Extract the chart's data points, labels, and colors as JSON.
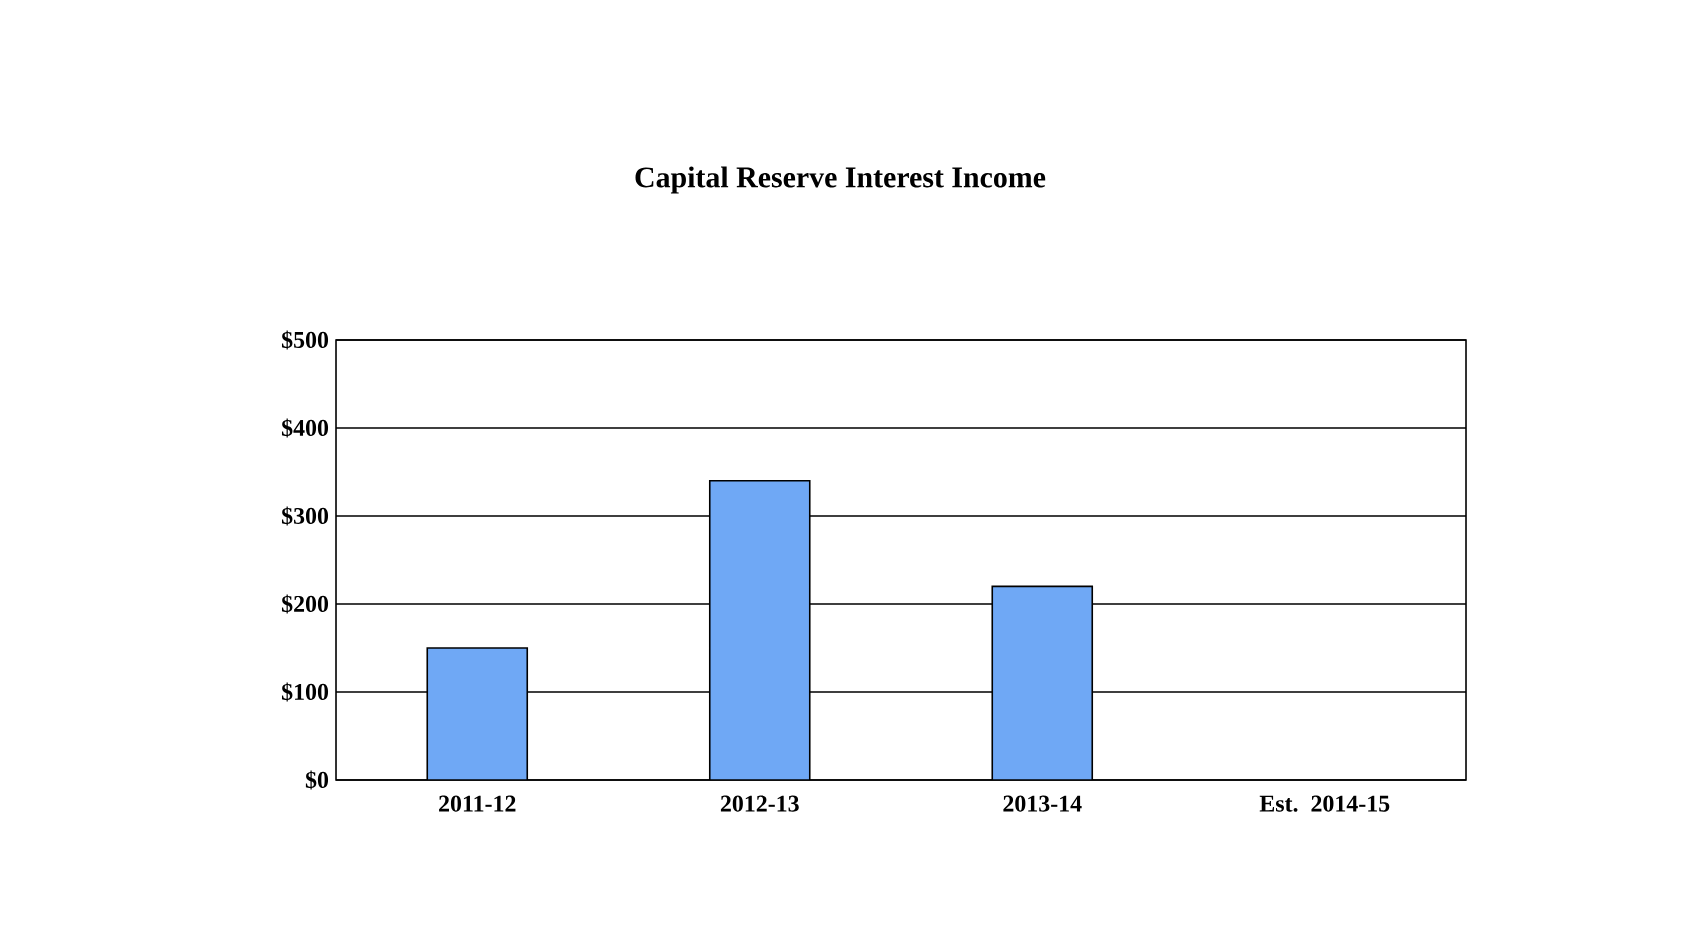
{
  "chart_data": {
    "type": "bar",
    "title": "Capital Reserve Interest Income",
    "categories": [
      "2011-12",
      "2012-13",
      "2013-14",
      "Est. 2014-15"
    ],
    "values": [
      150,
      340,
      220,
      null
    ],
    "color": "#6fa8f5",
    "ylim": [
      0,
      500
    ],
    "yticks": [
      {
        "value": 0,
        "label": "$0"
      },
      {
        "value": 100,
        "label": "$100"
      },
      {
        "value": 200,
        "label": "$200"
      },
      {
        "value": 300,
        "label": "$300"
      },
      {
        "value": 400,
        "label": "$400"
      },
      {
        "value": 500,
        "label": "$500"
      }
    ],
    "grid": "y"
  }
}
